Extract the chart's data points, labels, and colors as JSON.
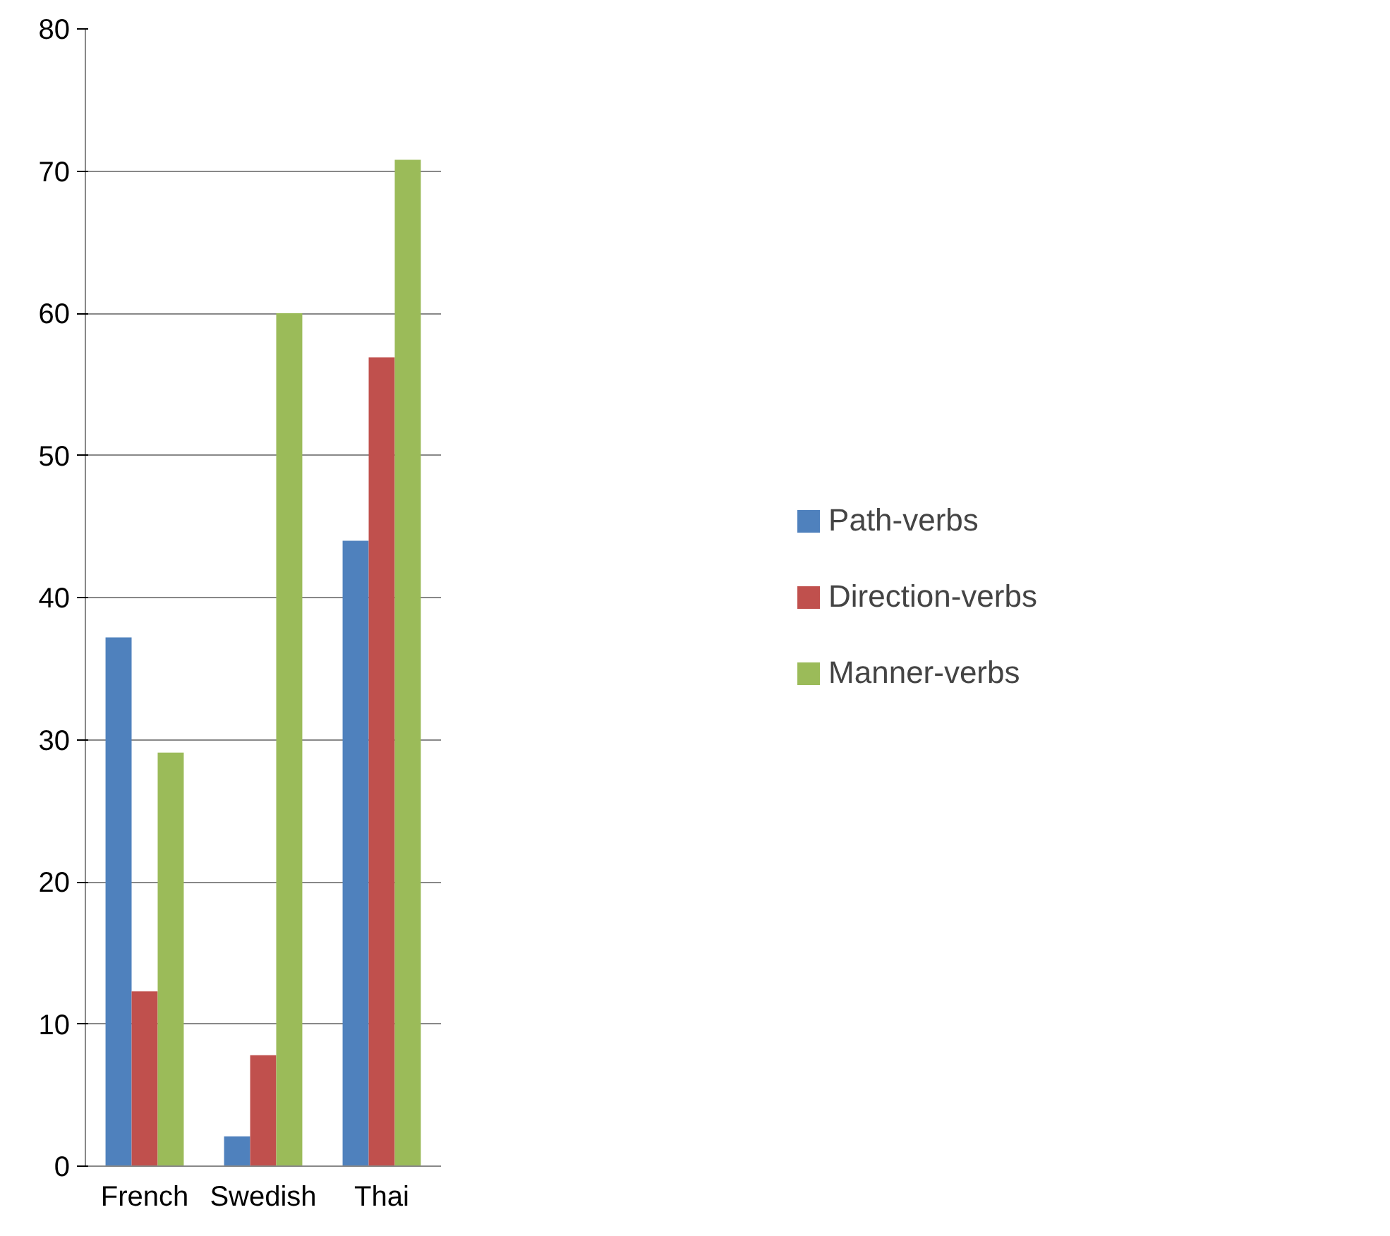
{
  "chart_data": {
    "type": "bar",
    "categories": [
      "French",
      "Swedish",
      "Thai"
    ],
    "series": [
      {
        "name": "Path-verbs",
        "color": "#4f81bd",
        "values": [
          37.2,
          2.1,
          44
        ]
      },
      {
        "name": "Direction-verbs",
        "color": "#c0504d",
        "values": [
          12.3,
          7.8,
          56.9
        ]
      },
      {
        "name": "Manner-verbs",
        "color": "#9bbb59",
        "values": [
          29.1,
          60,
          70.8
        ]
      }
    ],
    "ylim": [
      0,
      80
    ],
    "yticks": [
      0,
      10,
      20,
      30,
      40,
      50,
      60,
      70,
      80
    ],
    "grid": "y",
    "legend": "right"
  }
}
